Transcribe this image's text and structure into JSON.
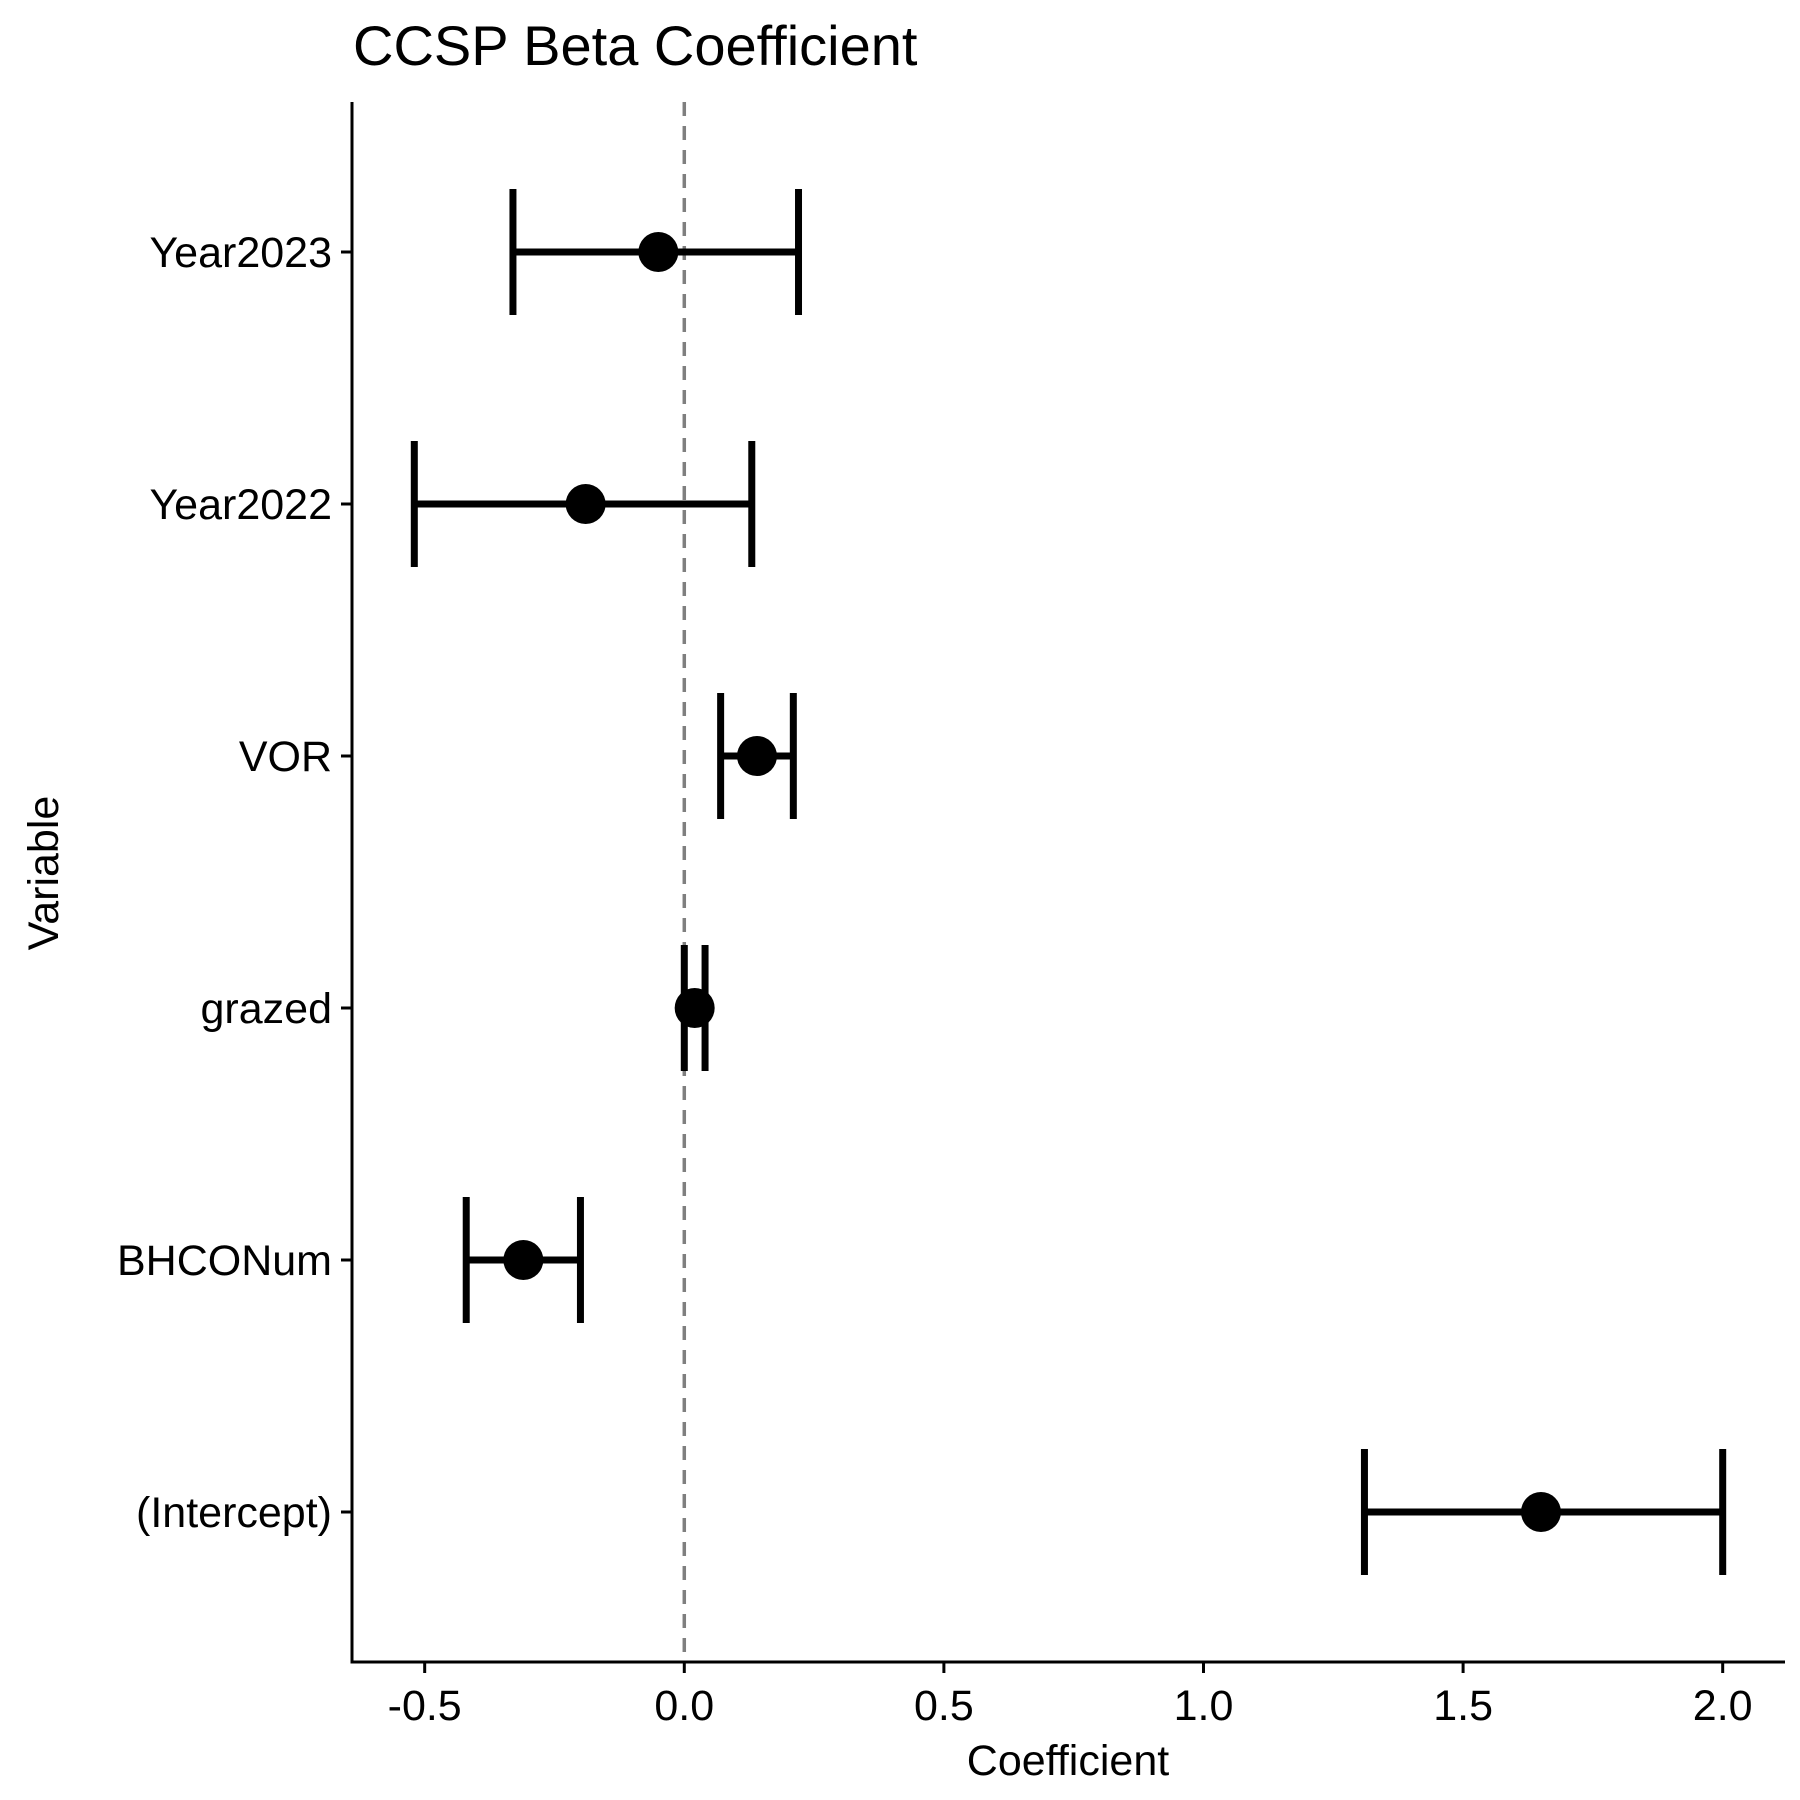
{
  "chart_data": {
    "type": "forest",
    "title": "CCSP Beta Coefficient",
    "xlabel": "Coefficient",
    "ylabel": "Variable",
    "xlim": [
      -0.64,
      2.12
    ],
    "xticks": [
      -0.5,
      0.0,
      0.5,
      1.0,
      1.5,
      2.0
    ],
    "xtick_labels": [
      "-0.5",
      "0.0",
      "0.5",
      "1.0",
      "1.5",
      "2.0"
    ],
    "reference_line": 0.0,
    "categories": [
      "Year2023",
      "Year2022",
      "VOR",
      "grazed",
      "BHCONum",
      "(Intercept)"
    ],
    "estimates": [
      -0.05,
      -0.19,
      0.14,
      0.02,
      -0.31,
      1.65
    ],
    "lower": [
      -0.33,
      -0.52,
      0.07,
      0.0,
      -0.42,
      1.31
    ],
    "upper": [
      0.22,
      0.13,
      0.21,
      0.04,
      -0.2,
      2.0
    ]
  }
}
